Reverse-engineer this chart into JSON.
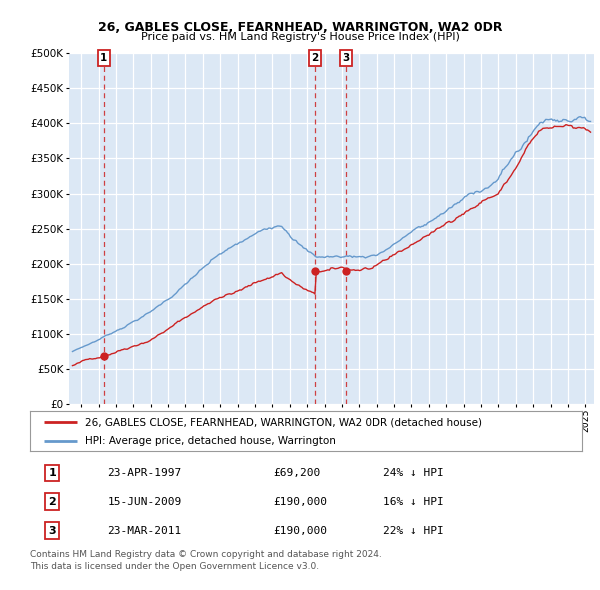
{
  "title1": "26, GABLES CLOSE, FEARNHEAD, WARRINGTON, WA2 0DR",
  "title2": "Price paid vs. HM Land Registry's House Price Index (HPI)",
  "legend_entry1": "26, GABLES CLOSE, FEARNHEAD, WARRINGTON, WA2 0DR (detached house)",
  "legend_entry2": "HPI: Average price, detached house, Warrington",
  "transactions": [
    {
      "num": 1,
      "date": "23-APR-1997",
      "price": 69200,
      "hpi_diff": "24% ↓ HPI",
      "year": 1997.3
    },
    {
      "num": 2,
      "date": "15-JUN-2009",
      "price": 190000,
      "hpi_diff": "16% ↓ HPI",
      "year": 2009.45
    },
    {
      "num": 3,
      "date": "23-MAR-2011",
      "price": 190000,
      "hpi_diff": "22% ↓ HPI",
      "year": 2011.22
    }
  ],
  "copyright": "Contains HM Land Registry data © Crown copyright and database right 2024.\nThis data is licensed under the Open Government Licence v3.0.",
  "hpi_color": "#6699cc",
  "price_color": "#cc2222",
  "bg_color": "#dce8f5",
  "plot_bg": "#ffffff",
  "ylim": [
    0,
    500000
  ],
  "xlim_start": 1995.3,
  "xlim_end": 2025.5
}
